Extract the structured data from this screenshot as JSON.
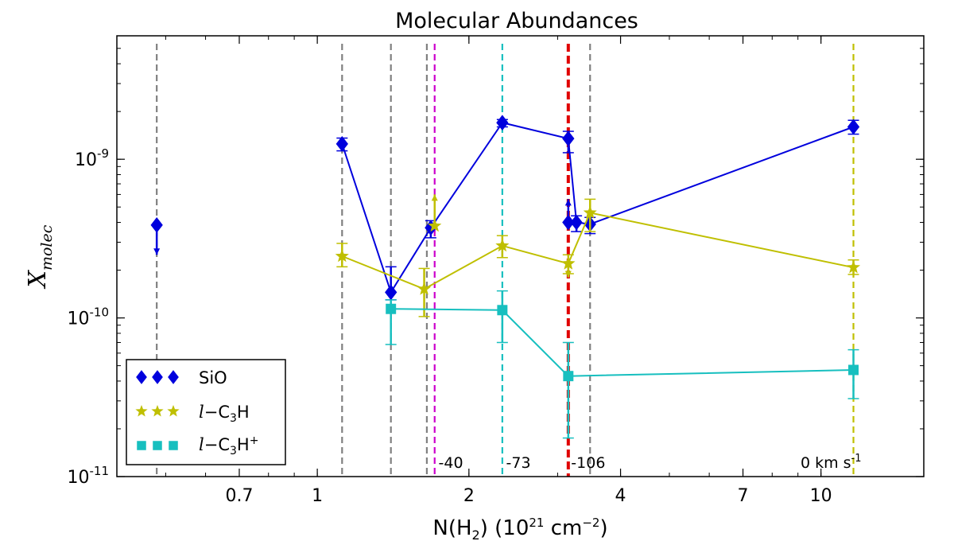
{
  "chart_data": {
    "type": "line",
    "title": "Molecular Abundances",
    "xlabel": "N(H2) (10^21 cm^-2)",
    "ylabel": "X_molec",
    "x_scale": "log",
    "y_scale": "log",
    "xlim": [
      0.4,
      16
    ],
    "ylim": [
      1e-11,
      6e-09
    ],
    "xticks": [
      0.7,
      1,
      2,
      4,
      7,
      10
    ],
    "xtick_labels": [
      "0.7",
      "1",
      "2",
      "4",
      "7",
      "10"
    ],
    "yticks": [
      1e-11,
      1e-10,
      1e-09
    ],
    "ytick_labels": [
      {
        "base": "10",
        "exp": "-11"
      },
      {
        "base": "10",
        "exp": "-10"
      },
      {
        "base": "10",
        "exp": "-9"
      }
    ],
    "grid": false,
    "legend_position": "lower-left",
    "series": [
      {
        "name": "SiO",
        "color": "#0000dd",
        "marker": "diamond",
        "points": [
          {
            "x": 1.12,
            "y": 1.25e-09,
            "lo": 1.13e-09,
            "hi": 1.36e-09
          },
          {
            "x": 1.4,
            "y": 1.45e-10,
            "lo": 1.3e-10,
            "hi": 2.1e-10
          },
          {
            "x": 1.68,
            "y": 3.7e-10,
            "lo": 3.2e-10,
            "hi": 4.1e-10
          },
          {
            "x": 2.33,
            "y": 1.7e-09,
            "lo": 1.6e-09,
            "hi": 1.78e-09
          },
          {
            "x": 3.15,
            "y": 1.35e-09,
            "lo": 1.1e-09,
            "hi": 1.5e-09
          },
          {
            "x": 3.27,
            "y": 4e-10,
            "lo": 3.5e-10,
            "hi": 4.4e-10
          },
          {
            "x": 3.48,
            "y": 3.9e-10,
            "lo": 3.4e-10,
            "hi": 4.3e-10
          },
          {
            "x": 11.6,
            "y": 1.6e-09,
            "lo": 1.44e-09,
            "hi": 1.76e-09
          }
        ],
        "limits": [
          {
            "x": 0.48,
            "y": 3.85e-10,
            "to": 2.5e-10,
            "kind": "upper"
          },
          {
            "x": 3.15,
            "y": 4e-10,
            "to": 5.6e-10,
            "kind": "lower"
          }
        ]
      },
      {
        "name": "l-C3H",
        "color": "#bfbf00",
        "marker": "star",
        "points": [
          {
            "x": 1.12,
            "y": 2.45e-10,
            "lo": 2.1e-10,
            "hi": 2.95e-10
          },
          {
            "x": 1.63,
            "y": 1.52e-10,
            "lo": 1.02e-10,
            "hi": 2.05e-10
          },
          {
            "x": 2.33,
            "y": 2.85e-10,
            "lo": 2.4e-10,
            "hi": 3.3e-10
          },
          {
            "x": 3.15,
            "y": 2.2e-10,
            "lo": 1.9e-10,
            "hi": 2.5e-10
          },
          {
            "x": 3.48,
            "y": 4.6e-10,
            "lo": 3.5e-10,
            "hi": 5.6e-10
          },
          {
            "x": 11.6,
            "y": 2.08e-10,
            "lo": 1.88e-10,
            "hi": 2.32e-10
          }
        ],
        "limits": [
          {
            "x": 1.71,
            "y": 3.8e-10,
            "to": 6e-10,
            "kind": "lower"
          },
          {
            "x": 3.15,
            "y": 2.2e-10,
            "to": 1.8e-10,
            "kind": "upper"
          }
        ]
      },
      {
        "name": "l-C3H+",
        "color": "#17bfbf",
        "marker": "square",
        "points": [
          {
            "x": 1.4,
            "y": 1.14e-10,
            "lo": 6.8e-11,
            "hi": 1.3e-10
          },
          {
            "x": 2.33,
            "y": 1.12e-10,
            "lo": 7e-11,
            "hi": 1.48e-10
          },
          {
            "x": 3.15,
            "y": 4.3e-11,
            "lo": 1.75e-11,
            "hi": 7e-11
          },
          {
            "x": 11.6,
            "y": 4.7e-11,
            "lo": 3.1e-11,
            "hi": 6.3e-11
          }
        ],
        "limits": []
      }
    ],
    "vertical_lines": [
      {
        "x": 0.48,
        "color": "#808080"
      },
      {
        "x": 1.12,
        "color": "#808080"
      },
      {
        "x": 1.4,
        "color": "#808080"
      },
      {
        "x": 1.65,
        "color": "#808080"
      },
      {
        "x": 1.71,
        "color": "#cc00cc"
      },
      {
        "x": 2.33,
        "color": "#17bfbf"
      },
      {
        "x": 3.15,
        "color": "#e00000",
        "bold": true
      },
      {
        "x": 3.48,
        "color": "#808080"
      },
      {
        "x": 11.6,
        "color": "#bfbf00"
      }
    ],
    "annotations": [
      {
        "text": "-40",
        "x": 1.74
      },
      {
        "text": "-73",
        "x": 2.37
      },
      {
        "text": "-106",
        "x": 3.19
      },
      {
        "text": "0 km s",
        "sup": "-1",
        "x": 11.6,
        "align": "end"
      }
    ]
  }
}
